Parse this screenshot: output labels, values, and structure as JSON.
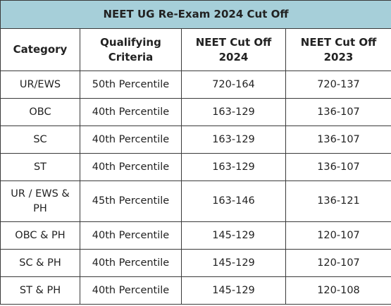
{
  "table": {
    "title": "NEET UG Re-Exam 2024 Cut Off",
    "headers": [
      "Category",
      "Qualifying Criteria",
      "NEET Cut Off 2024",
      "NEET Cut Off 2023"
    ],
    "rows": [
      [
        "UR/EWS",
        "50th Percentile",
        "720-164",
        "720-137"
      ],
      [
        "OBC",
        "40th Percentile",
        "163-129",
        "136-107"
      ],
      [
        "SC",
        "40th Percentile",
        "163-129",
        "136-107"
      ],
      [
        "ST",
        "40th Percentile",
        "163-129",
        "136-107"
      ],
      [
        "UR / EWS & PH",
        "45th Percentile",
        "163-146",
        "136-121"
      ],
      [
        "OBC & PH",
        "40th Percentile",
        "145-129",
        "120-107"
      ],
      [
        "SC & PH",
        "40th Percentile",
        "145-129",
        "120-107"
      ],
      [
        "ST & PH",
        "40th Percentile",
        "145-129",
        "120-108"
      ]
    ],
    "colors": {
      "title_background": "#a6cfd9",
      "border": "#3a3a3a"
    }
  }
}
